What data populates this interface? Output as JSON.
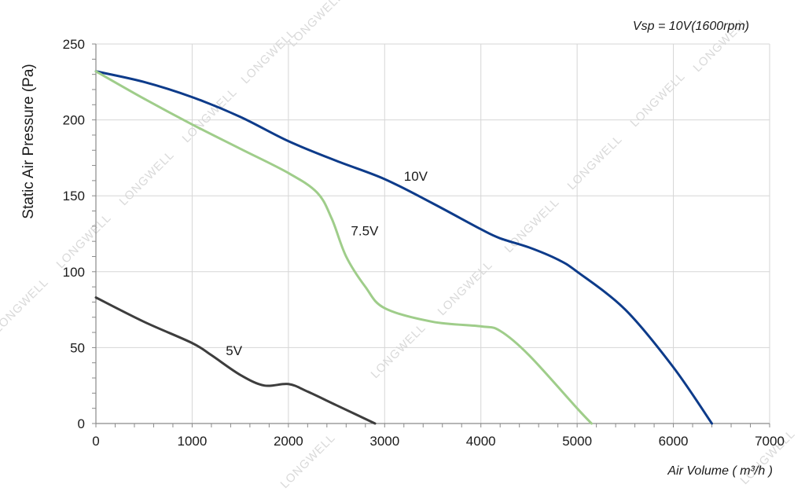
{
  "chart_data": {
    "type": "line",
    "title": "",
    "subtitle": "Vsp = 10V(1600rpm)",
    "xlabel": "Air Volume ( m³/h )",
    "ylabel": "Static Air Pressure  (Pa)",
    "xlim": [
      0,
      7000
    ],
    "ylim": [
      0,
      250
    ],
    "x_ticks": [
      "0",
      "1000",
      "2000",
      "3000",
      "4000",
      "5000",
      "6000",
      "7000"
    ],
    "y_ticks": [
      "0",
      "50",
      "100",
      "150",
      "200",
      "250"
    ],
    "grid": true,
    "watermark": "LONGWELL",
    "series": [
      {
        "name": "10V",
        "color": "#0d3b8a",
        "points": [
          [
            0,
            232
          ],
          [
            500,
            225
          ],
          [
            1000,
            215
          ],
          [
            1500,
            202
          ],
          [
            2000,
            186
          ],
          [
            2500,
            173
          ],
          [
            3000,
            161
          ],
          [
            3500,
            145
          ],
          [
            4000,
            128
          ],
          [
            4200,
            122
          ],
          [
            4500,
            116
          ],
          [
            4800,
            108
          ],
          [
            5000,
            100
          ],
          [
            5500,
            75
          ],
          [
            6000,
            37
          ],
          [
            6400,
            0
          ]
        ]
      },
      {
        "name": "7.5V",
        "color": "#9fcd8a",
        "points": [
          [
            0,
            232
          ],
          [
            500,
            214
          ],
          [
            1000,
            197
          ],
          [
            1500,
            181
          ],
          [
            2000,
            165
          ],
          [
            2300,
            152
          ],
          [
            2450,
            135
          ],
          [
            2600,
            110
          ],
          [
            2800,
            90
          ],
          [
            3000,
            76
          ],
          [
            3500,
            67
          ],
          [
            4000,
            64
          ],
          [
            4200,
            61
          ],
          [
            4500,
            45
          ],
          [
            5000,
            10
          ],
          [
            5150,
            0
          ]
        ]
      },
      {
        "name": "5V",
        "color": "#3d3d3d",
        "points": [
          [
            0,
            83
          ],
          [
            500,
            67
          ],
          [
            1000,
            53
          ],
          [
            1200,
            45
          ],
          [
            1500,
            32
          ],
          [
            1750,
            25
          ],
          [
            2000,
            26
          ],
          [
            2200,
            21
          ],
          [
            2500,
            12
          ],
          [
            2900,
            0
          ]
        ]
      }
    ],
    "annotations": [
      {
        "text": "10V",
        "x": 3200,
        "y": 160
      },
      {
        "text": "7.5V",
        "x": 2650,
        "y": 124
      },
      {
        "text": "5V",
        "x": 1350,
        "y": 45
      }
    ]
  }
}
